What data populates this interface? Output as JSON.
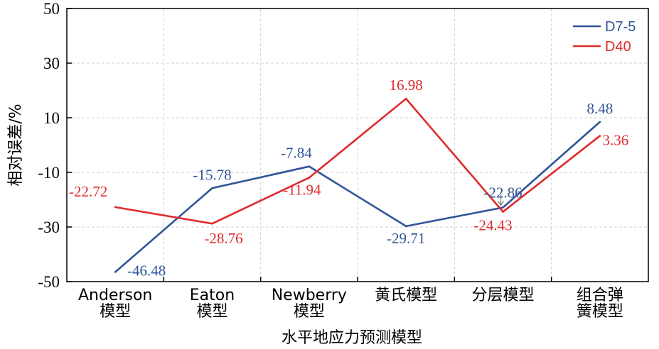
{
  "chart_data": {
    "type": "line",
    "xlabel": "水平地应力预测模型",
    "ylabel": "相对误差/%",
    "ylim": [
      -50,
      50
    ],
    "yticks": [
      "50",
      "30",
      "10",
      "-10",
      "-30",
      "-50"
    ],
    "categories": [
      [
        "Anderson",
        "模型"
      ],
      [
        "Eaton",
        "模型"
      ],
      [
        "Newberry",
        "模型"
      ],
      [
        "黄氏模型"
      ],
      [
        "分层模型"
      ],
      [
        "组合弹",
        "簧模型"
      ]
    ],
    "grid": true,
    "legend_position": "top-right",
    "series": [
      {
        "name": "D7-5",
        "color": "#2f5597",
        "values": [
          -46.48,
          -15.78,
          -7.84,
          -29.71,
          -22.86,
          8.48
        ],
        "labels": [
          "-46.48",
          "-15.78",
          "-7.84",
          "-29.71",
          "-22.86",
          "8.48"
        ]
      },
      {
        "name": "D40",
        "color": "#e02a2a",
        "values": [
          -22.72,
          -28.76,
          -11.94,
          16.98,
          -24.43,
          3.36
        ],
        "labels": [
          "-22.72",
          "-28.76",
          "-11.94",
          "16.98",
          "-24.43",
          "3.36"
        ]
      }
    ]
  }
}
